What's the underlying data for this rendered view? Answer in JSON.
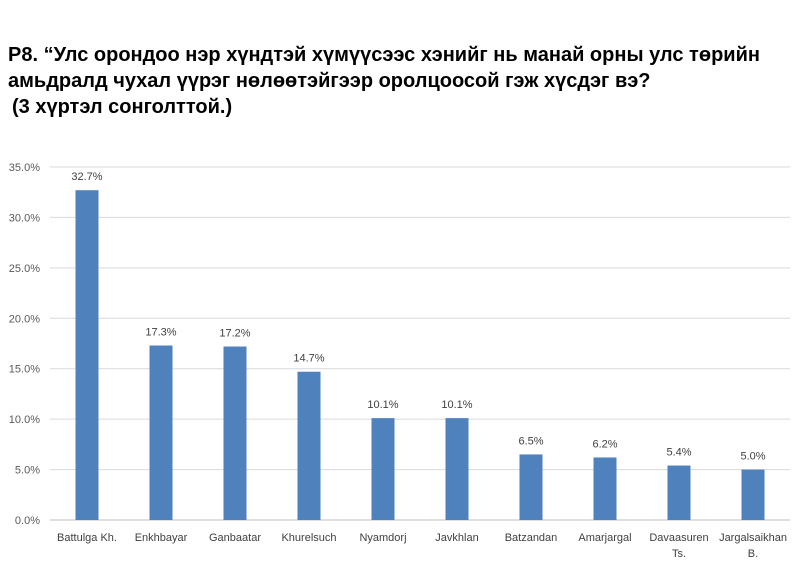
{
  "title_lines": [
    "P8. “Улс орондоо нэр хүндтэй хүмүүсээс хэнийг нь манай орны улс төрийн",
    "амьдралд чухал үүрэг нөлөөтэйгээр оролцоосой гэж хүсдэг вэ?",
    "(3 хүртэл сонголттой.)"
  ],
  "colors": {
    "bar": "#4F81BD",
    "grid": "#D9D9D9",
    "axis": "#BFBFBF"
  },
  "chart_data": {
    "type": "bar",
    "title": "P8. “Улс орондоо нэр хүндтэй хүмүүсээс хэнийг нь манай орны улс төрийн амьдралд чухал үүрэг нөлөөтэйгээр оролцоосой гэж хүсдэг вэ? (3 хүртэл сонголттой.)",
    "categories": [
      [
        "Battulga Kh."
      ],
      [
        "Enkhbayar"
      ],
      [
        "Ganbaatar"
      ],
      [
        "Khurelsuch"
      ],
      [
        "Nyamdorj"
      ],
      [
        "Javkhlan"
      ],
      [
        "Batzandan"
      ],
      [
        "Amarjargal"
      ],
      [
        "Davaasuren",
        "Ts."
      ],
      [
        "Jargalsaikhan",
        "B."
      ]
    ],
    "values": [
      32.7,
      17.3,
      17.2,
      14.7,
      10.1,
      10.1,
      6.5,
      6.2,
      5.4,
      5.0
    ],
    "value_labels": [
      "32.7%",
      "17.3%",
      "17.2%",
      "14.7%",
      "10.1%",
      "10.1%",
      "6.5%",
      "6.2%",
      "5.4%",
      "5.0%"
    ],
    "yticks": [
      0,
      5,
      10,
      15,
      20,
      25,
      30,
      35
    ],
    "ytick_labels": [
      "0.0%",
      "5.0%",
      "10.0%",
      "15.0%",
      "20.0%",
      "25.0%",
      "30.0%",
      "35.0%"
    ],
    "ylim": [
      0,
      35
    ],
    "xlabel": "",
    "ylabel": "",
    "grid": true,
    "legend": "none"
  }
}
